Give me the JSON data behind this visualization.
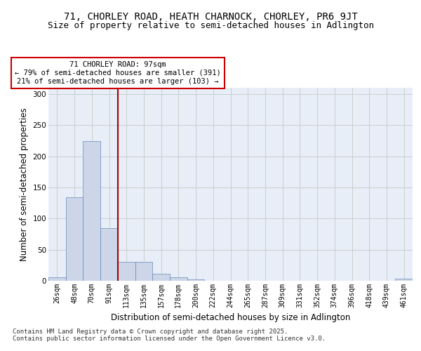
{
  "title_line1": "71, CHORLEY ROAD, HEATH CHARNOCK, CHORLEY, PR6 9JT",
  "title_line2": "Size of property relative to semi-detached houses in Adlington",
  "xlabel": "Distribution of semi-detached houses by size in Adlington",
  "ylabel": "Number of semi-detached properties",
  "categories": [
    "26sqm",
    "48sqm",
    "70sqm",
    "91sqm",
    "113sqm",
    "135sqm",
    "157sqm",
    "178sqm",
    "200sqm",
    "222sqm",
    "244sqm",
    "265sqm",
    "287sqm",
    "309sqm",
    "331sqm",
    "352sqm",
    "374sqm",
    "396sqm",
    "418sqm",
    "439sqm",
    "461sqm"
  ],
  "values": [
    6,
    134,
    224,
    85,
    30,
    30,
    11,
    6,
    2,
    0,
    0,
    0,
    0,
    0,
    0,
    0,
    0,
    0,
    0,
    0,
    3
  ],
  "bar_color": "#ccd6e8",
  "bar_edge_color": "#6688bb",
  "grid_color": "#cccccc",
  "background_color": "#e8eef8",
  "vline_x_index": 3,
  "vline_color": "#aa0000",
  "annotation_text": "71 CHORLEY ROAD: 97sqm\n← 79% of semi-detached houses are smaller (391)\n21% of semi-detached houses are larger (103) →",
  "annotation_box_color": "white",
  "annotation_box_edge": "#cc0000",
  "footnote": "Contains HM Land Registry data © Crown copyright and database right 2025.\nContains public sector information licensed under the Open Government Licence v3.0.",
  "ylim": [
    0,
    310
  ],
  "yticks": [
    0,
    50,
    100,
    150,
    200,
    250,
    300
  ],
  "title_fontsize": 10,
  "subtitle_fontsize": 9,
  "tick_fontsize": 7,
  "label_fontsize": 8.5
}
